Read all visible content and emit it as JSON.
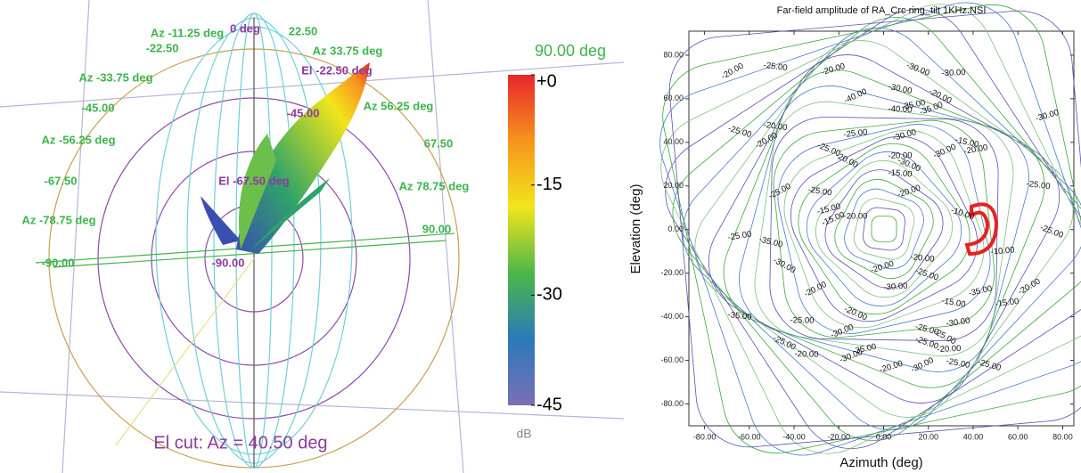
{
  "chart_data": [
    {
      "type": "pattern3d",
      "annotations": [
        "90.00 deg",
        "0 deg",
        "Az -11.25 deg",
        "-22.50",
        "Az -33.75 deg",
        "-45.00",
        "Az -56.25 deg",
        "-67.50",
        "Az -78.75 deg",
        "-90.00",
        "22.50",
        "Az 33.75 deg",
        "El -22.50 deg",
        "-45.00",
        "Az 56.25 deg",
        "67.50",
        "Az 78.75 deg",
        "90.00",
        "El -67.50 deg",
        "-90.00",
        "El cut: Az = 40.50 deg"
      ],
      "colorbar_label": "dB",
      "clim": [
        -45,
        0
      ],
      "cticks": [
        {
          "value": 0,
          "label": "+0"
        },
        -15,
        -30,
        -45
      ],
      "colors": [
        "#e8262a",
        "#f7941d",
        "#f2e51b",
        "#4cb748",
        "#2a7ab9",
        "#7a6fb5"
      ]
    },
    {
      "type": "contour",
      "title": "Far-field amplitude of RA_Crc ring_tilt 1KHz.NSI",
      "x_label": "Azimuth (deg)",
      "y_label": "Elevation (deg)",
      "xlim": [
        -87,
        85
      ],
      "ylim": [
        -90,
        91
      ],
      "xticks": [
        {
          "value": -80,
          "label": "-80.00"
        },
        {
          "value": -60,
          "label": "-60.00"
        },
        {
          "value": -40,
          "label": "-40.00"
        },
        {
          "value": -20,
          "label": "-20.00"
        },
        {
          "value": 0,
          "label": "0.00"
        },
        {
          "value": 20,
          "label": "20.00"
        },
        {
          "value": 40,
          "label": "40.00"
        },
        {
          "value": 60,
          "label": "60.00"
        },
        {
          "value": 80,
          "label": "80.00"
        }
      ],
      "yticks": [
        {
          "value": 80,
          "label": "80.00"
        },
        {
          "value": 60,
          "label": "60.00"
        },
        {
          "value": 40,
          "label": "40.00"
        },
        {
          "value": 20,
          "label": "20.00"
        },
        {
          "value": 0,
          "label": "0.00"
        },
        {
          "value": -20,
          "label": "-20.00"
        },
        {
          "value": -40,
          "label": "-40.00"
        },
        {
          "value": -60,
          "label": "-60.00"
        },
        {
          "value": -80,
          "label": "-80.00"
        }
      ],
      "contour_labels": [
        "-20.00",
        "-25.00",
        "-20.00",
        "-30.00",
        "-30.00",
        "-40.00",
        "-30.00",
        "-35.00",
        "-20.00",
        "-40.00",
        "-35.00",
        "-25.00",
        "-25.00",
        "-20.00",
        "-20.00",
        "-30.00",
        "-25.00",
        "-20.00",
        "-30.00",
        "-15.00",
        "-20.00",
        "-20.00",
        "-15.00",
        "-20.00",
        "-10.00",
        "-10.00",
        "-25.00",
        "-25.00",
        "-15.00",
        "-30.00",
        "-20.00",
        "-15.00",
        "-35.00",
        "-25.00",
        "-30.00",
        "-20.00",
        "-20.00",
        "-25.00",
        "-30.00",
        "-20.00",
        "-15.00",
        "-35.00",
        "-20.00",
        "-25.00",
        "-30.00",
        "-25.00",
        "-30.00",
        "-25.00",
        "-35.00",
        "-20.00",
        "-25.00",
        "-20.00",
        "-30.00",
        "-25.00",
        "-35.00",
        "-25.00",
        "-20.00",
        "-30.00",
        "-25.00",
        "-15.00",
        "-20.00",
        "-25.00",
        "-30.00",
        "-25.00"
      ]
    }
  ]
}
